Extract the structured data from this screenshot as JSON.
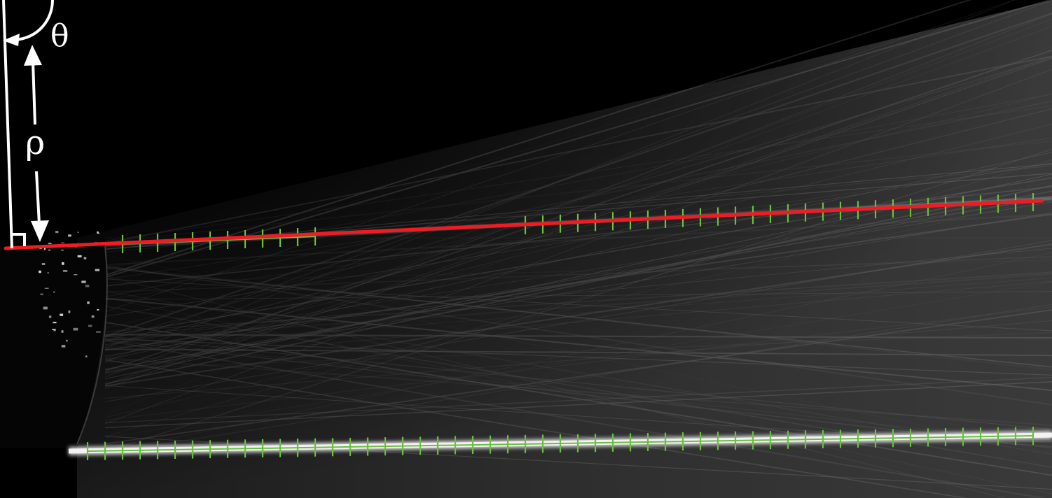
{
  "labels": {
    "theta": "θ",
    "rho": "ρ"
  },
  "colors": {
    "fitted_line": "#ee1c25",
    "detected_edge": "#6abf3f",
    "annotation": "#ffffff",
    "background": "#000000"
  }
}
